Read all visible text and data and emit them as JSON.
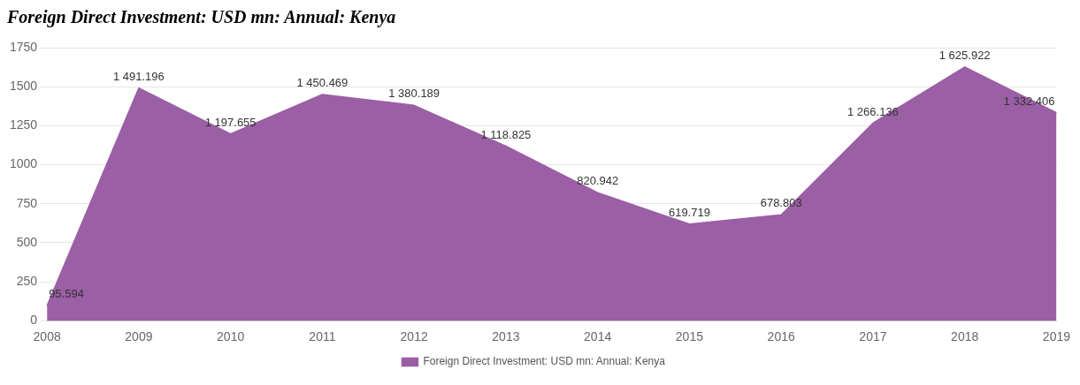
{
  "chart_data": {
    "type": "area",
    "title": "Foreign Direct Investment: USD mn: Annual: Kenya",
    "categories": [
      "2008",
      "2009",
      "2010",
      "2011",
      "2012",
      "2013",
      "2014",
      "2015",
      "2016",
      "2017",
      "2018",
      "2019"
    ],
    "series": [
      {
        "name": "Foreign Direct Investment: USD mn: Annual: Kenya",
        "color": "#9b5fa5",
        "values": [
          95.594,
          1491.196,
          1197.655,
          1450.469,
          1380.189,
          1118.825,
          820.942,
          619.719,
          678.803,
          1266.136,
          1625.922,
          1332.406
        ],
        "value_labels": [
          "95.594",
          "1 491.196",
          "1 197.655",
          "1 450.469",
          "1 380.189",
          "1 118.825",
          "820.942",
          "619.719",
          "678.803",
          "1 266.136",
          "1 625.922",
          "1 332.406"
        ]
      }
    ],
    "ylim": [
      0,
      1750
    ],
    "yticks": [
      0,
      250,
      500,
      750,
      1000,
      1250,
      1500,
      1750
    ],
    "grid": "y",
    "legend": "bottom",
    "marker": "none"
  }
}
